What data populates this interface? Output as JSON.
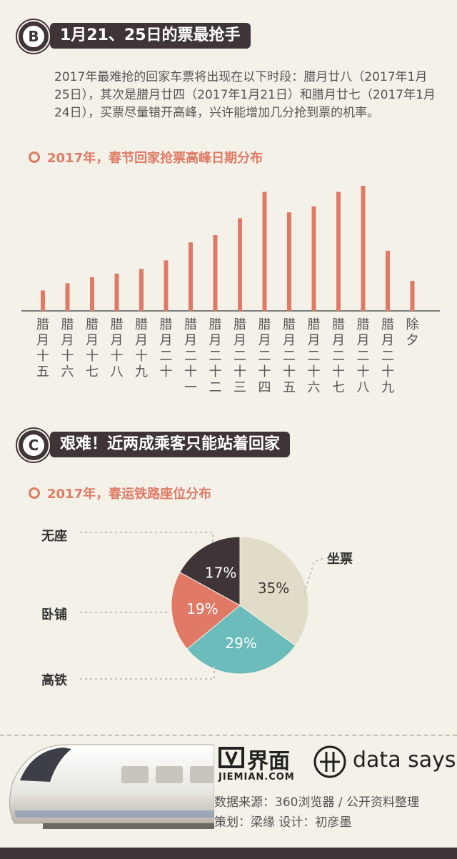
{
  "section_b": {
    "letter": "B",
    "title": "1月21、25日的票最抢手",
    "intro": "2017年最难抢的回家车票将出现在以下时段：腊月廿八（2017年1月25日），其次是腊月廿四（2017年1月21日）和腊月廿七（2017年1月24日），买票尽量错开高峰，兴许能增加几分抢到票的机率。",
    "chart_title": "2017年，春节回家抢票高峰日期分布"
  },
  "section_c": {
    "letter": "C",
    "title": "艰难！近两成乘客只能站着回家",
    "chart_title": "2017年，春运铁路座位分布"
  },
  "chart_data": [
    {
      "type": "bar",
      "title": "2017年，春节回家抢票高峰日期分布",
      "categories": [
        "腊月十五",
        "腊月十六",
        "腊月十七",
        "腊月十八",
        "腊月十九",
        "腊月二十",
        "腊月二十一",
        "腊月二十二",
        "腊月二十三",
        "腊月二十四",
        "腊月二十五",
        "腊月二十六",
        "腊月二十七",
        "腊月二十八",
        "腊月二十九",
        "除夕"
      ],
      "values": [
        17,
        23,
        28,
        31,
        35,
        42,
        57,
        63,
        77,
        99,
        82,
        87,
        99,
        104,
        50,
        25
      ],
      "color": "#e07a66",
      "ylim": [
        0,
        110
      ]
    },
    {
      "type": "pie",
      "title": "2017年，春运铁路座位分布",
      "slices": [
        {
          "label": "坐票",
          "value": 35,
          "percent": "35%",
          "color": "#e0dcc8"
        },
        {
          "label": "高铁",
          "value": 29,
          "percent": "29%",
          "color": "#6cbcbc"
        },
        {
          "label": "卧铺",
          "value": 19,
          "percent": "19%",
          "color": "#e07a66"
        },
        {
          "label": "无座",
          "value": 17,
          "percent": "17%",
          "color": "#3f3539"
        }
      ]
    }
  ],
  "footer": {
    "brand_cn": "界面",
    "brand_en": "JIEMIAN.COM",
    "brand2": "data says",
    "source": "数据来源：360浏览器 / 公开资料整理",
    "credits": "策划：梁缘  设计：初彦墨"
  }
}
